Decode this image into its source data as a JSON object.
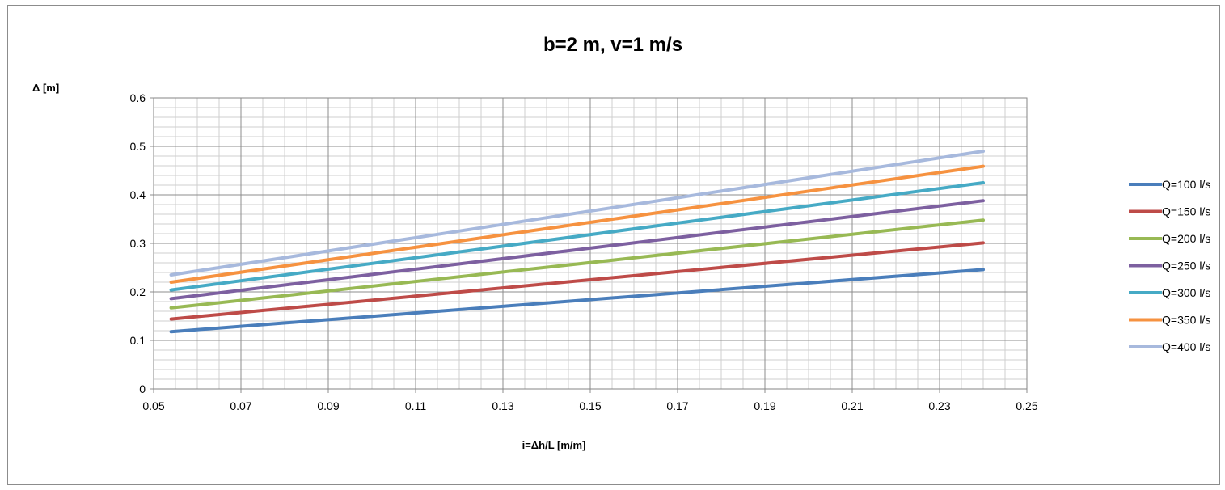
{
  "chart_data": {
    "type": "line",
    "title": "b=2 m, v=1 m/s",
    "xlabel": "i=Δh/L [m/m]",
    "ylabel": "Δ [m]",
    "xlim": [
      0.05,
      0.25
    ],
    "ylim": [
      0,
      0.6
    ],
    "xticks": [
      "0.05",
      "0.07",
      "0.09",
      "0.11",
      "0.13",
      "0.15",
      "0.17",
      "0.19",
      "0.21",
      "0.23",
      "0.25"
    ],
    "yticks": [
      "0",
      "0.1",
      "0.2",
      "0.3",
      "0.4",
      "0.5",
      "0.6"
    ],
    "x_minor_step": 0.005,
    "y_minor_step": 0.02,
    "grid": true,
    "legend_position": "right",
    "x": [
      0.054,
      0.24
    ],
    "series": [
      {
        "name": "Q=100 l/s",
        "color": "#4a7ebb",
        "values": [
          0.118,
          0.246
        ]
      },
      {
        "name": "Q=150 l/s",
        "color": "#be4b48",
        "values": [
          0.144,
          0.301
        ]
      },
      {
        "name": "Q=200 l/s",
        "color": "#98b954",
        "values": [
          0.167,
          0.348
        ]
      },
      {
        "name": "Q=250 l/s",
        "color": "#7d60a0",
        "values": [
          0.186,
          0.388
        ]
      },
      {
        "name": "Q=300 l/s",
        "color": "#46aac5",
        "values": [
          0.204,
          0.425
        ]
      },
      {
        "name": "Q=350 l/s",
        "color": "#f69240",
        "values": [
          0.22,
          0.459
        ]
      },
      {
        "name": "Q=400 l/s",
        "color": "#a7b9dd",
        "values": [
          0.235,
          0.49
        ]
      }
    ]
  }
}
